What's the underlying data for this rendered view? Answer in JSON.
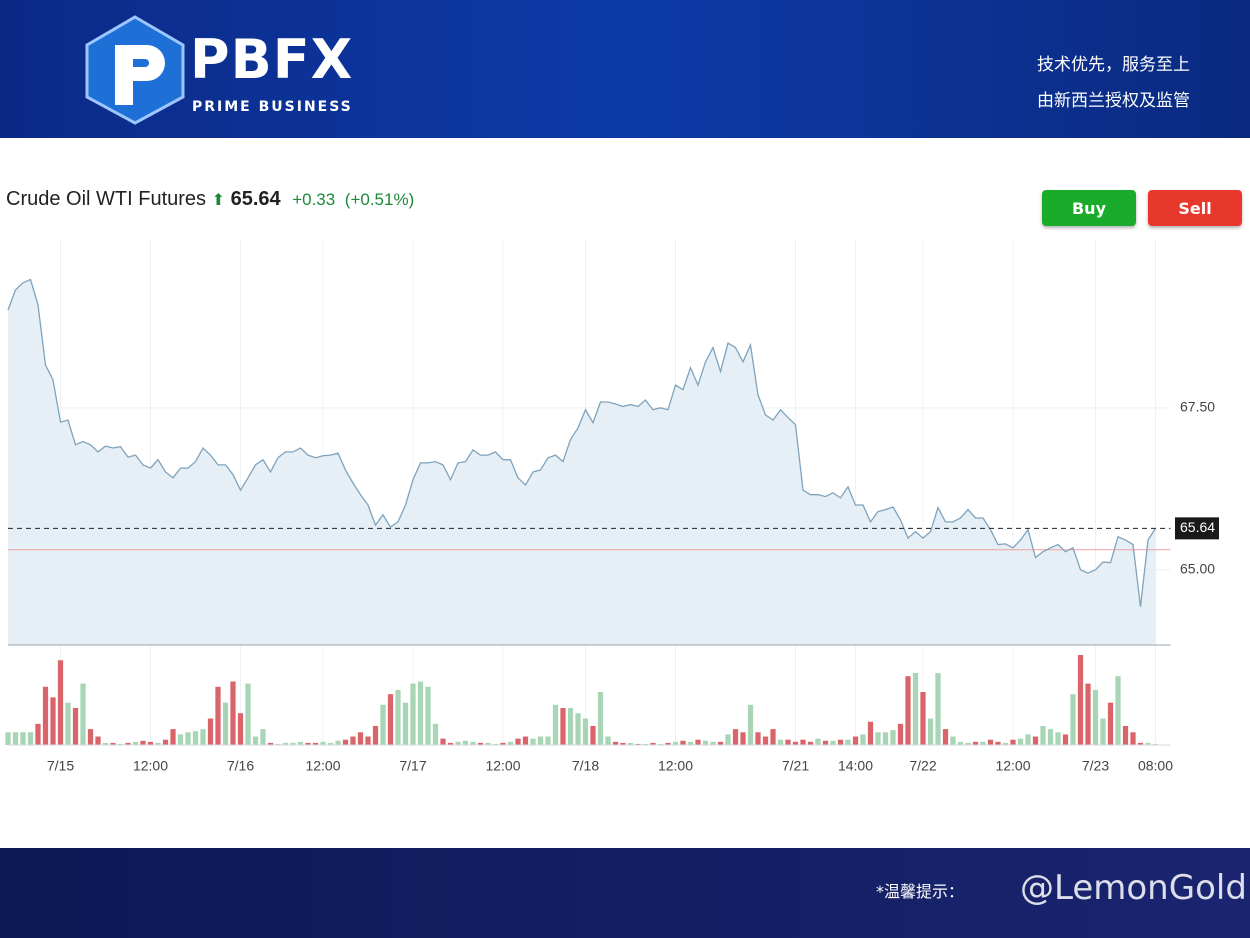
{
  "header": {
    "logo": "PBFX",
    "logo_sub": "PRIME BUSINESS",
    "slogan_1": "技术优先，服务至上",
    "slogan_2": "由新西兰授权及监管"
  },
  "toolbar": {
    "instrument": "Crude Oil WTI Futures",
    "change": "+0.33",
    "change_pct": "(+0.51%)",
    "buy": "Buy",
    "sell": "Sell"
  },
  "footer": {
    "notice": "*温馨提示：",
    "watermark": "@LemonGold"
  },
  "chart_data": {
    "type": "line",
    "color": "#7fa3bd",
    "fill": "#e6eff6",
    "up_color": "#a8d5b5",
    "down_color": "#d9646a",
    "last_value": 65.64,
    "reference_value": 65.31,
    "xlim": [
      0,
      155
    ],
    "ylim": [
      63.84,
      70.09
    ],
    "yticks": [
      {
        "value": 65,
        "label": "65.00"
      },
      {
        "value": 67.5,
        "label": "67.50"
      }
    ],
    "xticks": [
      {
        "value": 7,
        "label": "7/15"
      },
      {
        "value": 19,
        "label": "12:00"
      },
      {
        "value": 31,
        "label": "7/16"
      },
      {
        "value": 42,
        "label": "12:00"
      },
      {
        "value": 54,
        "label": "7/17"
      },
      {
        "value": 66,
        "label": "12:00"
      },
      {
        "value": 77,
        "label": "7/18"
      },
      {
        "value": 89,
        "label": "12:00"
      },
      {
        "value": 105,
        "label": "7/21"
      },
      {
        "value": 113,
        "label": "14:00"
      },
      {
        "value": 122,
        "label": "7/22"
      },
      {
        "value": 134,
        "label": "12:00"
      },
      {
        "value": 145,
        "label": "7/23"
      },
      {
        "value": 153,
        "label": "08:00"
      }
    ],
    "x": [
      0,
      1,
      2,
      3,
      4,
      5,
      6,
      7,
      8,
      9,
      10,
      11,
      12,
      13,
      14,
      15,
      16,
      17,
      18,
      19,
      20,
      21,
      22,
      23,
      24,
      25,
      26,
      27,
      28,
      29,
      30,
      31,
      32,
      33,
      34,
      35,
      36,
      37,
      38,
      39,
      40,
      41,
      42,
      43,
      44,
      45,
      46,
      47,
      48,
      49,
      50,
      51,
      52,
      53,
      54,
      55,
      56,
      57,
      58,
      59,
      60,
      61,
      62,
      63,
      64,
      65,
      66,
      67,
      68,
      69,
      70,
      71,
      72,
      73,
      74,
      75,
      76,
      77,
      78,
      79,
      80,
      81,
      82,
      83,
      84,
      85,
      86,
      87,
      88,
      89,
      90,
      91,
      92,
      93,
      94,
      95,
      96,
      97,
      98,
      99,
      100,
      101,
      102,
      103,
      104,
      105,
      106,
      107,
      108,
      109,
      110,
      111,
      112,
      113,
      114,
      115,
      116,
      117,
      118,
      119,
      120,
      121,
      122,
      123,
      124,
      125,
      126,
      127,
      128,
      129,
      130,
      131,
      132,
      133,
      134,
      135,
      136,
      137,
      138,
      139,
      140,
      141,
      142,
      143,
      144,
      145,
      146,
      147,
      148,
      149,
      150,
      151,
      152,
      153
    ],
    "values": [
      69.01,
      69.32,
      69.43,
      69.48,
      69.09,
      68.16,
      67.93,
      67.28,
      67.31,
      66.93,
      66.98,
      66.93,
      66.82,
      66.91,
      66.88,
      66.9,
      66.74,
      66.77,
      66.62,
      66.57,
      66.7,
      66.51,
      66.42,
      66.57,
      66.57,
      66.67,
      66.88,
      66.77,
      66.62,
      66.62,
      66.47,
      66.23,
      66.42,
      66.62,
      66.7,
      66.51,
      66.73,
      66.82,
      66.82,
      66.88,
      66.77,
      66.73,
      66.76,
      66.77,
      66.8,
      66.54,
      66.34,
      66.16,
      66.0,
      65.69,
      65.85,
      65.66,
      65.74,
      66.0,
      66.39,
      66.65,
      66.65,
      66.67,
      66.62,
      66.39,
      66.65,
      66.67,
      66.85,
      66.77,
      66.77,
      66.82,
      66.7,
      66.7,
      66.42,
      66.31,
      66.51,
      66.54,
      66.73,
      66.77,
      66.67,
      67.01,
      67.19,
      67.47,
      67.27,
      67.59,
      67.59,
      67.56,
      67.52,
      67.55,
      67.52,
      67.62,
      67.47,
      67.5,
      67.47,
      67.85,
      67.78,
      68.12,
      67.85,
      68.21,
      68.43,
      68.06,
      68.5,
      68.43,
      68.21,
      68.47,
      67.7,
      67.39,
      67.31,
      67.47,
      67.35,
      67.24,
      66.23,
      66.16,
      66.16,
      66.13,
      66.19,
      66.11,
      66.28,
      66.0,
      66.0,
      65.74,
      65.9,
      65.93,
      65.97,
      65.77,
      65.49,
      65.59,
      65.49,
      65.59,
      65.96,
      65.74,
      65.74,
      65.8,
      65.93,
      65.8,
      65.8,
      65.62,
      65.39,
      65.4,
      65.34,
      65.46,
      65.62,
      65.19,
      65.28,
      65.34,
      65.39,
      65.28,
      65.34,
      65.0,
      64.95,
      65.0,
      65.12,
      65.11,
      65.51,
      65.46,
      65.39,
      64.43,
      65.46,
      65.64
    ],
    "volume": [
      12,
      12,
      12,
      12,
      20,
      55,
      45,
      80,
      40,
      35,
      58,
      15,
      8,
      2,
      2,
      1,
      2,
      3,
      4,
      3,
      2,
      5,
      15,
      10,
      12,
      13,
      15,
      25,
      55,
      40,
      60,
      30,
      58,
      8,
      15,
      2,
      1,
      2,
      2,
      3,
      2,
      2,
      3,
      2,
      4,
      5,
      8,
      12,
      8,
      18,
      38,
      48,
      52,
      40,
      58,
      60,
      55,
      20,
      6,
      2,
      3,
      4,
      3,
      2,
      2,
      1,
      2,
      3,
      6,
      8,
      6,
      8,
      8,
      38,
      35,
      35,
      30,
      25,
      18,
      50,
      8,
      3,
      2,
      2,
      1,
      1,
      2,
      1,
      2,
      3,
      4,
      3,
      5,
      4,
      3,
      3,
      10,
      15,
      12,
      38,
      12,
      8,
      15,
      5,
      5,
      3,
      5,
      3,
      6,
      4,
      4,
      5,
      5,
      8,
      10,
      22,
      12,
      12,
      14,
      20,
      65,
      68,
      50,
      25,
      68,
      15,
      8,
      3,
      2,
      3,
      3,
      5,
      3,
      2,
      5,
      6,
      10,
      8,
      18,
      15,
      12,
      10,
      48,
      85,
      58,
      52,
      25,
      40,
      65,
      18,
      12,
      2,
      2,
      1
    ]
  }
}
